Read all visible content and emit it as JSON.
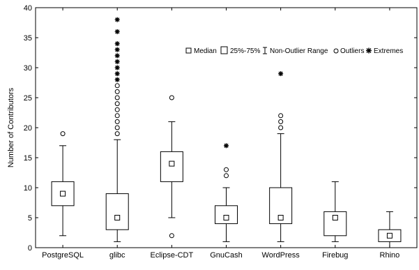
{
  "chart_data": {
    "type": "boxplot",
    "ylabel": "Number of Contributors",
    "ylim": [
      0,
      40
    ],
    "yticks": [
      0,
      5,
      10,
      15,
      20,
      25,
      30,
      35,
      40
    ],
    "grid": false,
    "legend_position": "top-right",
    "legend": {
      "median": "Median",
      "box": "25%-75%",
      "whisker": "Non-Outlier Range",
      "outliers": "Outliers",
      "extremes": "Extremes"
    },
    "categories": [
      "PostgreSQL",
      "glibc",
      "Eclipse-CDT",
      "GnuCash",
      "WordPress",
      "Firebug",
      "Rhino"
    ],
    "boxes": [
      {
        "name": "PostgreSQL",
        "median": 9,
        "q1": 7,
        "q3": 11,
        "whisker_low": 2,
        "whisker_high": 17,
        "outliers": [
          19
        ],
        "extremes": []
      },
      {
        "name": "glibc",
        "median": 5,
        "q1": 3,
        "q3": 9,
        "whisker_low": 1,
        "whisker_high": 18,
        "outliers": [
          19,
          20,
          21,
          22,
          23,
          24,
          25,
          26,
          27
        ],
        "extremes": [
          28,
          29,
          30,
          31,
          32,
          33,
          34,
          36,
          38
        ]
      },
      {
        "name": "Eclipse-CDT",
        "median": 14,
        "q1": 11,
        "q3": 16,
        "whisker_low": 5,
        "whisker_high": 21,
        "outliers": [
          2,
          25
        ],
        "extremes": []
      },
      {
        "name": "GnuCash",
        "median": 5,
        "q1": 4,
        "q3": 7,
        "whisker_low": 1,
        "whisker_high": 10,
        "outliers": [
          12,
          13
        ],
        "extremes": [
          17
        ]
      },
      {
        "name": "WordPress",
        "median": 5,
        "q1": 4,
        "q3": 10,
        "whisker_low": 1,
        "whisker_high": 19,
        "outliers": [
          20,
          21,
          22
        ],
        "extremes": [
          29
        ]
      },
      {
        "name": "Firebug",
        "median": 5,
        "q1": 2,
        "q3": 6,
        "whisker_low": 1,
        "whisker_high": 11,
        "outliers": [],
        "extremes": []
      },
      {
        "name": "Rhino",
        "median": 2,
        "q1": 1,
        "q3": 3,
        "whisker_low": 0,
        "whisker_high": 6,
        "outliers": [],
        "extremes": []
      }
    ]
  }
}
